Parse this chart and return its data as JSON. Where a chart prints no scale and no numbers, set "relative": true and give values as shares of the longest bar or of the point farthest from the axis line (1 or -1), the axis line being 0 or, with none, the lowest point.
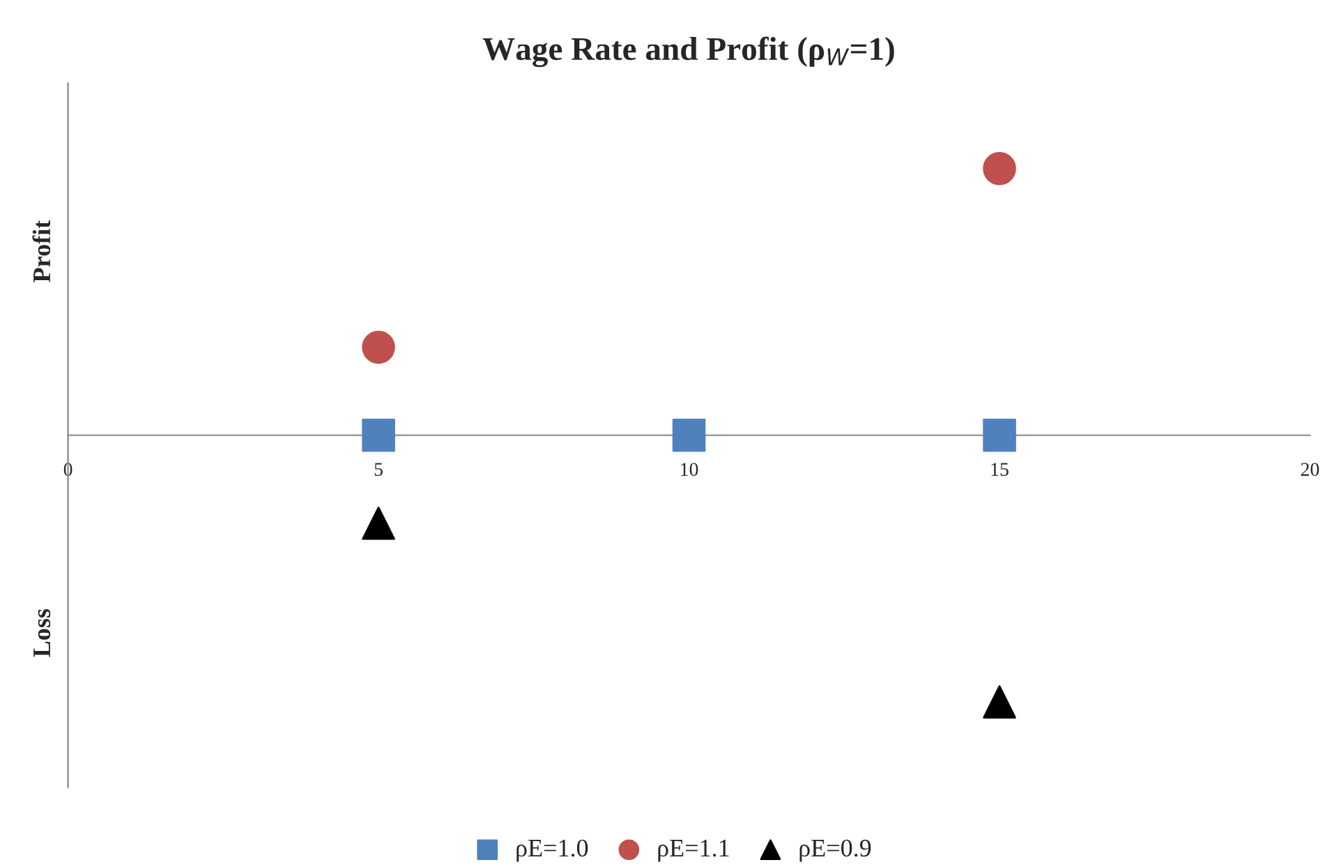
{
  "chart_data": {
    "type": "scatter",
    "title": "Wage Rate and Profit (ρ$_{W}$=1)",
    "ylabel": "Profit",
    "annotations": [
      "Loss"
    ],
    "relative": true,
    "x": [
      5,
      10,
      15
    ],
    "xlim": [
      0,
      20
    ],
    "xticks": [
      0,
      5,
      10,
      15,
      20
    ],
    "grid": false,
    "legend": "bottom",
    "series": [
      {
        "name": "ρE=1.0",
        "color": "#4f81bd",
        "marker": "square",
        "values": [
          0,
          0,
          0
        ]
      },
      {
        "name": "ρE=1.1",
        "color": "#c0504d",
        "marker": "circle",
        "values": [
          0.33,
          null,
          1
        ]
      },
      {
        "name": "ρE=0.9",
        "color": "#000000",
        "marker": "triangle",
        "values": [
          -0.33,
          null,
          -1
        ]
      }
    ]
  }
}
